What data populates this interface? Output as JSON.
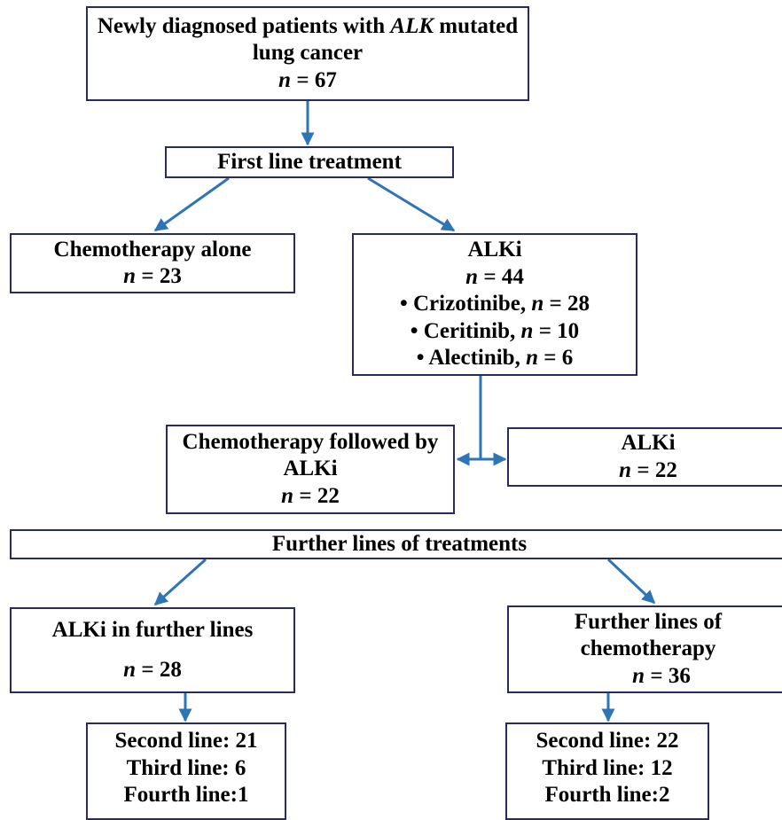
{
  "root": {
    "line1_pre": "Newly diagnosed  patients with ",
    "line1_italic": "ALK",
    "line1_post": " mutated",
    "line2": "lung cancer",
    "n_symbol": "n",
    "n_value": " = 67"
  },
  "first_line": {
    "label": "First line treatment"
  },
  "chemo_alone": {
    "label": "Chemotherapy alone",
    "n_symbol": "n",
    "n_value": " = 23"
  },
  "alki": {
    "label": "ALKi",
    "n_symbol": "n",
    "n_value": " = 44",
    "items": [
      {
        "prefix": "• Crizotinibe, ",
        "n_symbol": "n",
        "n_value": " = 28"
      },
      {
        "prefix": "• Ceritinib, ",
        "n_symbol": "n",
        "n_value": " = 10"
      },
      {
        "prefix": "• Alectinib, ",
        "n_symbol": "n",
        "n_value": " = 6"
      }
    ]
  },
  "chemo_followed": {
    "line1": "Chemotherapy followed by",
    "line2": "ALKi",
    "n_symbol": "n",
    "n_value": " = 22"
  },
  "alki_only": {
    "label": "ALKi",
    "n_symbol": "n",
    "n_value": " = 22"
  },
  "further": {
    "label": "Further lines of treatments"
  },
  "alki_further": {
    "label": "ALKi in further lines",
    "n_symbol": "n",
    "n_value": " = 28"
  },
  "chemo_further": {
    "line1": "Further lines of",
    "line2": "chemotherapy",
    "n_symbol": "n",
    "n_value": " = 36"
  },
  "alki_lines": [
    "Second line: 21",
    "Third line: 6",
    "Fourth line:1"
  ],
  "chemo_lines": [
    "Second line: 22",
    "Third line: 12",
    "Fourth line:2"
  ],
  "colors": {
    "arrow": "#2e75b6",
    "border": "#2a2a5e"
  }
}
